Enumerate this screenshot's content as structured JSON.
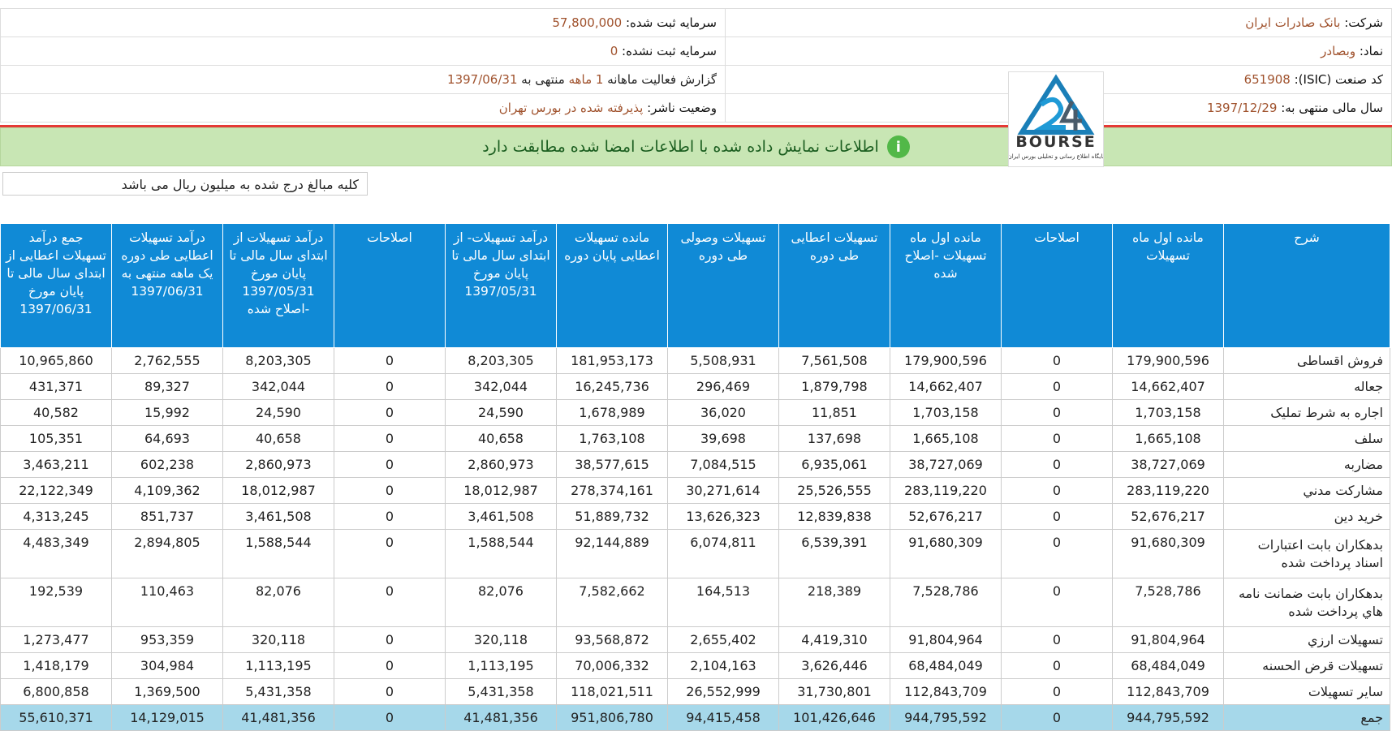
{
  "header": {
    "company_label": "شرکت:",
    "company": "بانک صادرات ایران",
    "symbol_label": "نماد:",
    "symbol": "وبصادر",
    "isic_label": "کد صنعت (ISIC):",
    "isic": "651908",
    "fiscal_label": "سال مالی منتهی به:",
    "fiscal": "1397/12/29",
    "reg_capital_label": "سرمایه ثبت شده:",
    "reg_capital": "57,800,000",
    "unreg_capital_label": "سرمایه ثبت نشده:",
    "unreg_capital": "0",
    "report_a": "گزارش فعالیت ماهانه",
    "report_b": "1 ماهه",
    "report_c": "منتهی به",
    "report_d": "1397/06/31",
    "status_label": "وضعیت ناشر:",
    "status": "پذیرفته شده در بورس تهران"
  },
  "logo": {
    "title": "BOURSE",
    "subtitle": "پایگاه اطلاع رسانی و تحلیلی بورس ایران"
  },
  "banner": "اطلاعات نمایش داده شده با اطلاعات امضا شده مطابقت دارد",
  "note": "کلیه مبالغ درج شده به میلیون ریال می باشد",
  "table": {
    "columns": [
      "شرح",
      "مانده اول ماه تسهیلات",
      "اصلاحات",
      "مانده اول ماه تسهیلات -اصلاح شده",
      "تسهیلات اعطایی طی دوره",
      "تسهیلات وصولی طی دوره",
      "مانده تسهیلات اعطایی پایان دوره",
      "درآمد تسهیلات- از ابتدای سال مالی تا پایان مورخ 1397/05/31",
      "اصلاحات",
      "درآمد تسهیلات از ابتدای سال مالی تا پایان مورخ 1397/05/31 -اصلاح شده",
      "درآمد تسهیلات اعطایی طی دوره یک ماهه منتهی به 1397/06/31",
      "جمع درآمد تسهیلات اعطایی از ابتدای سال مالی تا پایان مورخ 1397/06/31"
    ],
    "rows": [
      [
        "فروش اقساطی",
        "179,900,596",
        "0",
        "179,900,596",
        "7,561,508",
        "5,508,931",
        "181,953,173",
        "8,203,305",
        "0",
        "8,203,305",
        "2,762,555",
        "10,965,860"
      ],
      [
        "جعاله",
        "14,662,407",
        "0",
        "14,662,407",
        "1,879,798",
        "296,469",
        "16,245,736",
        "342,044",
        "0",
        "342,044",
        "89,327",
        "431,371"
      ],
      [
        "اجاره به شرط تمليک",
        "1,703,158",
        "0",
        "1,703,158",
        "11,851",
        "36,020",
        "1,678,989",
        "24,590",
        "0",
        "24,590",
        "15,992",
        "40,582"
      ],
      [
        "سلف",
        "1,665,108",
        "0",
        "1,665,108",
        "137,698",
        "39,698",
        "1,763,108",
        "40,658",
        "0",
        "40,658",
        "64,693",
        "105,351"
      ],
      [
        "مضاربه",
        "38,727,069",
        "0",
        "38,727,069",
        "6,935,061",
        "7,084,515",
        "38,577,615",
        "2,860,973",
        "0",
        "2,860,973",
        "602,238",
        "3,463,211"
      ],
      [
        "مشارکت مدني",
        "283,119,220",
        "0",
        "283,119,220",
        "25,526,555",
        "30,271,614",
        "278,374,161",
        "18,012,987",
        "0",
        "18,012,987",
        "4,109,362",
        "22,122,349"
      ],
      [
        "خريد دين",
        "52,676,217",
        "0",
        "52,676,217",
        "12,839,838",
        "13,626,323",
        "51,889,732",
        "3,461,508",
        "0",
        "3,461,508",
        "851,737",
        "4,313,245"
      ],
      [
        "بدهکاران بابت اعتبارات اسناد پرداخت شده",
        "91,680,309",
        "0",
        "91,680,309",
        "6,539,391",
        "6,074,811",
        "92,144,889",
        "1,588,544",
        "0",
        "1,588,544",
        "2,894,805",
        "4,483,349"
      ],
      [
        "بدهکاران بابت ضمانت نامه هاي پرداخت شده",
        "7,528,786",
        "0",
        "7,528,786",
        "218,389",
        "164,513",
        "7,582,662",
        "82,076",
        "0",
        "82,076",
        "110,463",
        "192,539"
      ],
      [
        "تسهيلات ارزي",
        "91,804,964",
        "0",
        "91,804,964",
        "4,419,310",
        "2,655,402",
        "93,568,872",
        "320,118",
        "0",
        "320,118",
        "953,359",
        "1,273,477"
      ],
      [
        "تسهيلات قرض الحسنه",
        "68,484,049",
        "0",
        "68,484,049",
        "3,626,446",
        "2,104,163",
        "70,006,332",
        "1,113,195",
        "0",
        "1,113,195",
        "304,984",
        "1,418,179"
      ],
      [
        "ساير تسهيلات",
        "112,843,709",
        "0",
        "112,843,709",
        "31,730,801",
        "26,552,999",
        "118,021,511",
        "5,431,358",
        "0",
        "5,431,358",
        "1,369,500",
        "6,800,858"
      ],
      [
        "جمع",
        "944,795,592",
        "0",
        "944,795,592",
        "101,426,646",
        "94,415,458",
        "951,806,780",
        "41,481,356",
        "0",
        "41,481,356",
        "14,129,015",
        "55,610,371"
      ]
    ]
  }
}
